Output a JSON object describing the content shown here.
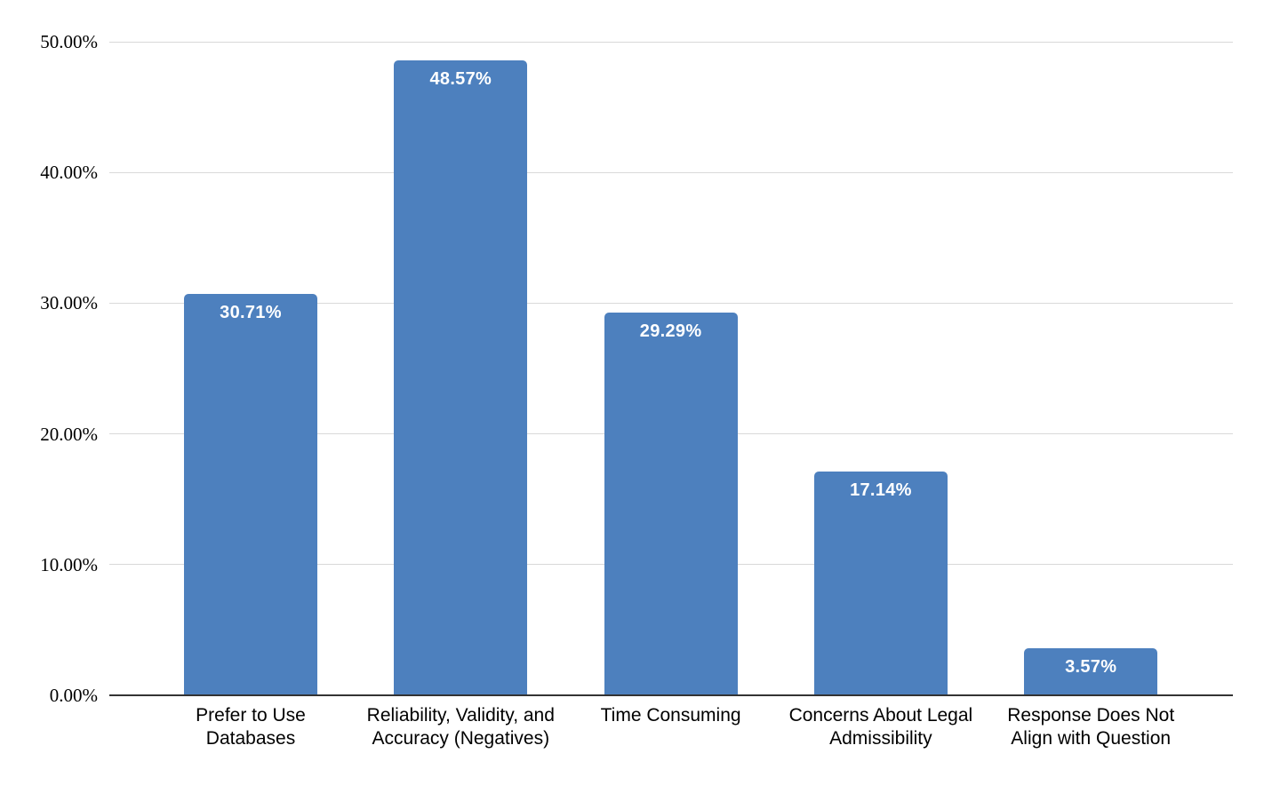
{
  "chart_data": {
    "type": "bar",
    "title": "",
    "xlabel": "",
    "ylabel": "",
    "categories": [
      "Prefer to Use Databases",
      "Reliability, Validity, and Accuracy (Negatives)",
      "Time Consuming",
      "Concerns About Legal Admissibility",
      "Response Does Not Align with Question"
    ],
    "category_display_lines": [
      [
        "Prefer to Use",
        "Databases"
      ],
      [
        "Reliability, Validity, and",
        "Accuracy (Negatives)"
      ],
      [
        "Time Consuming"
      ],
      [
        "Concerns About Legal",
        "Admissibility"
      ],
      [
        "Response Does Not",
        "Align with Question"
      ]
    ],
    "values": [
      30.71,
      48.57,
      29.29,
      17.14,
      3.57
    ],
    "value_labels": [
      "30.71%",
      "48.57%",
      "29.29%",
      "17.14%",
      "3.57%"
    ],
    "y_ticks": [
      "0.00%",
      "10.00%",
      "20.00%",
      "30.00%",
      "40.00%",
      "50.00%"
    ],
    "y_tick_values": [
      0,
      10,
      20,
      30,
      40,
      50
    ],
    "ylim": [
      0,
      50
    ],
    "grid": true,
    "legend": "none",
    "colors": {
      "bar_fill": "#4D80BE",
      "value_label_text": "#FFFFFF",
      "gridline": "#D9D9D9",
      "axis_line": "#333333",
      "tick_text": "#000000",
      "category_text": "#000000",
      "background": "#FFFFFF"
    }
  }
}
